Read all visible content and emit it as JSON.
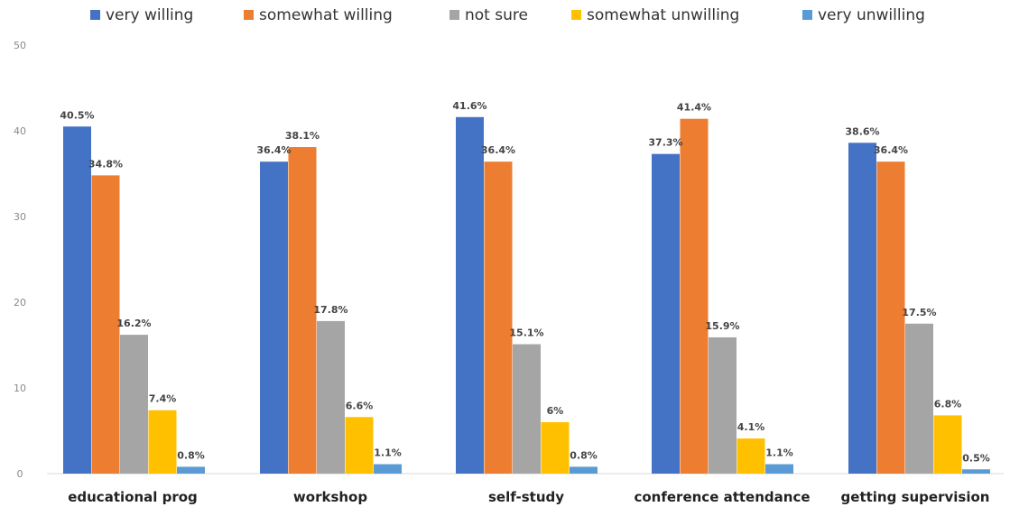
{
  "chart_data": {
    "type": "bar",
    "categories": [
      "educational prog",
      "workshop",
      "self-study",
      "conference attendance",
      "getting supervision"
    ],
    "series": [
      {
        "name": "very willing",
        "color": "#4472C4",
        "values": [
          40.5,
          36.4,
          41.6,
          37.3,
          38.6
        ],
        "labels": [
          "40.5%",
          "36.4%",
          "41.6%",
          "37.3%",
          "38.6%"
        ]
      },
      {
        "name": "somewhat willing",
        "color": "#ED7D31",
        "values": [
          34.8,
          38.1,
          36.4,
          41.4,
          36.4
        ],
        "labels": [
          "34.8%",
          "38.1%",
          "36.4%",
          "41.4%",
          "36.4%"
        ]
      },
      {
        "name": "not sure",
        "color": "#A5A5A5",
        "values": [
          16.2,
          17.8,
          15.1,
          15.9,
          17.5
        ],
        "labels": [
          "16.2%",
          "17.8%",
          "15.1%",
          "15.9%",
          "17.5%"
        ]
      },
      {
        "name": "somewhat unwilling",
        "color": "#FFC000",
        "values": [
          7.4,
          6.6,
          6,
          4.1,
          6.8
        ],
        "labels": [
          "7.4%",
          "6.6%",
          "6%",
          "4.1%",
          "6.8%"
        ]
      },
      {
        "name": "very unwilling",
        "color": "#5B9BD5",
        "values": [
          0.8,
          1.1,
          0.8,
          1.1,
          0.5
        ],
        "labels": [
          "0.8%",
          "1.1%",
          "0.8%",
          "1.1%",
          "0.5%"
        ]
      }
    ],
    "yticks": [
      "0",
      "10",
      "20",
      "30",
      "40",
      "50"
    ],
    "ylim": [
      0,
      50
    ],
    "legend_position": "top",
    "grid": false
  }
}
